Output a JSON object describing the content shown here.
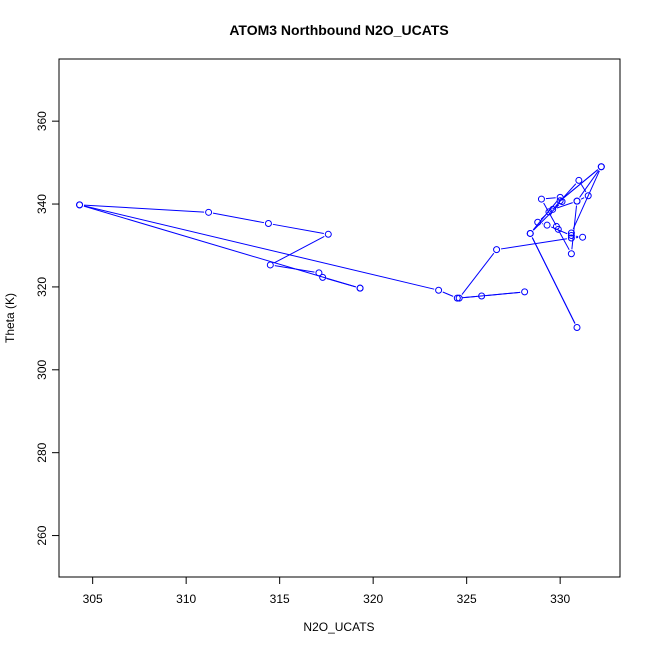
{
  "chart_data": {
    "type": "line",
    "title": "ATOM3 Northbound N2O_UCATS",
    "xlabel": "N2O_UCATS",
    "ylabel": "Theta (K)",
    "xlim": [
      303.2,
      333.2
    ],
    "ylim": [
      250,
      375
    ],
    "x_ticks": [
      305,
      310,
      315,
      320,
      325,
      330
    ],
    "y_ticks": [
      260,
      280,
      300,
      320,
      340,
      360
    ],
    "grid": false,
    "marker": "open-circle",
    "series": [
      {
        "color": "#0000ff",
        "points": [
          {
            "x": 304.3,
            "y": 339.8
          },
          {
            "x": 311.2,
            "y": 338.0
          },
          {
            "x": 314.4,
            "y": 335.3
          },
          {
            "x": 317.6,
            "y": 332.7
          },
          {
            "x": 314.5,
            "y": 325.3
          },
          {
            "x": 317.1,
            "y": 323.4
          },
          {
            "x": 317.3,
            "y": 322.3
          },
          {
            "x": 319.3,
            "y": 319.7
          },
          {
            "x": 319.3,
            "y": 319.7
          },
          {
            "x": 304.3,
            "y": 339.8
          },
          {
            "x": 323.5,
            "y": 319.2
          },
          {
            "x": 324.5,
            "y": 317.3
          },
          {
            "x": 325.8,
            "y": 317.8
          },
          {
            "x": 328.1,
            "y": 318.8
          },
          {
            "x": 324.6,
            "y": 317.3
          },
          {
            "x": 326.6,
            "y": 329.0
          },
          {
            "x": 330.6,
            "y": 331.8
          },
          {
            "x": 331.2,
            "y": 332.0
          },
          {
            "x": 330.6,
            "y": 332.4
          },
          {
            "x": 329.3,
            "y": 334.9
          },
          {
            "x": 328.8,
            "y": 335.6
          },
          {
            "x": 329.4,
            "y": 338.1
          },
          {
            "x": 330.1,
            "y": 340.6
          },
          {
            "x": 328.4,
            "y": 332.9
          },
          {
            "x": 330.9,
            "y": 310.2
          },
          {
            "x": 328.4,
            "y": 332.9
          },
          {
            "x": 330.0,
            "y": 341.6
          },
          {
            "x": 329.0,
            "y": 341.2
          },
          {
            "x": 329.9,
            "y": 333.9
          },
          {
            "x": 329.8,
            "y": 334.6
          },
          {
            "x": 330.6,
            "y": 328.0
          },
          {
            "x": 330.9,
            "y": 340.7
          },
          {
            "x": 331.5,
            "y": 342.0
          },
          {
            "x": 331.0,
            "y": 345.7
          },
          {
            "x": 329.6,
            "y": 338.7
          },
          {
            "x": 330.9,
            "y": 340.7
          },
          {
            "x": 332.2,
            "y": 349.0
          },
          {
            "x": 330.0,
            "y": 340.8
          },
          {
            "x": 332.2,
            "y": 349.0
          },
          {
            "x": 330.6,
            "y": 333.0
          }
        ]
      }
    ]
  }
}
